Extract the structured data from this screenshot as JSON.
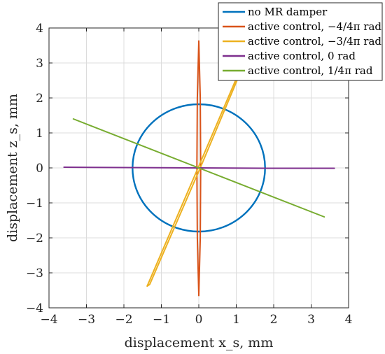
{
  "chart_data": {
    "type": "line",
    "xlabel": "displacement x_s, mm",
    "ylabel": "displacement z_s, mm",
    "xlim": [
      -4,
      4
    ],
    "ylim": [
      -4,
      4
    ],
    "xticks": [
      -4,
      -3,
      -2,
      -1,
      0,
      1,
      2,
      3,
      4
    ],
    "yticks": [
      -4,
      -3,
      -2,
      -1,
      0,
      1,
      2,
      3,
      4
    ],
    "xtick_labels": [
      "−4",
      "−3",
      "−2",
      "−1",
      "0",
      "1",
      "2",
      "3",
      "4"
    ],
    "ytick_labels": [
      "−4",
      "−3",
      "−2",
      "−1",
      "0",
      "1",
      "2",
      "3",
      "4"
    ],
    "grid": true,
    "legend_position": "top-right, outside",
    "series": [
      {
        "name": "no MR damper",
        "color": "#0072bd",
        "shape": "ellipse",
        "center": [
          0,
          0
        ],
        "rx": 1.77,
        "ry": 1.82
      },
      {
        "name": "active control, −4/4π rad",
        "color": "#d95319",
        "shape": "narrow-loop",
        "points": [
          [
            0.0,
            -3.65
          ],
          [
            -0.04,
            -2.0
          ],
          [
            -0.05,
            0.0
          ],
          [
            -0.04,
            2.0
          ],
          [
            0.0,
            3.63
          ],
          [
            0.04,
            2.0
          ],
          [
            0.05,
            0.0
          ],
          [
            0.04,
            -2.0
          ],
          [
            0.0,
            -3.65
          ]
        ]
      },
      {
        "name": "active control, −3/4π rad",
        "color": "#edb120",
        "shape": "narrow-loop",
        "points": [
          [
            -1.38,
            -3.38
          ],
          [
            -0.02,
            0.0
          ],
          [
            1.0,
            2.55
          ],
          [
            1.4,
            3.45
          ],
          [
            1.06,
            2.6
          ],
          [
            0.04,
            0.0
          ],
          [
            -1.31,
            -3.33
          ],
          [
            -1.38,
            -3.38
          ]
        ]
      },
      {
        "name": "active control, 0 rad",
        "color": "#7e2f8e",
        "shape": "line",
        "points": [
          [
            -3.6,
            0.02
          ],
          [
            -2.0,
            0.01
          ],
          [
            0.0,
            0.0
          ],
          [
            2.0,
            -0.01
          ],
          [
            3.62,
            -0.01
          ]
        ]
      },
      {
        "name": "active control, 1/4π rad",
        "color": "#77ac30",
        "shape": "line",
        "points": [
          [
            -3.35,
            1.4
          ],
          [
            0.0,
            0.0
          ],
          [
            3.35,
            -1.4
          ]
        ]
      }
    ]
  }
}
